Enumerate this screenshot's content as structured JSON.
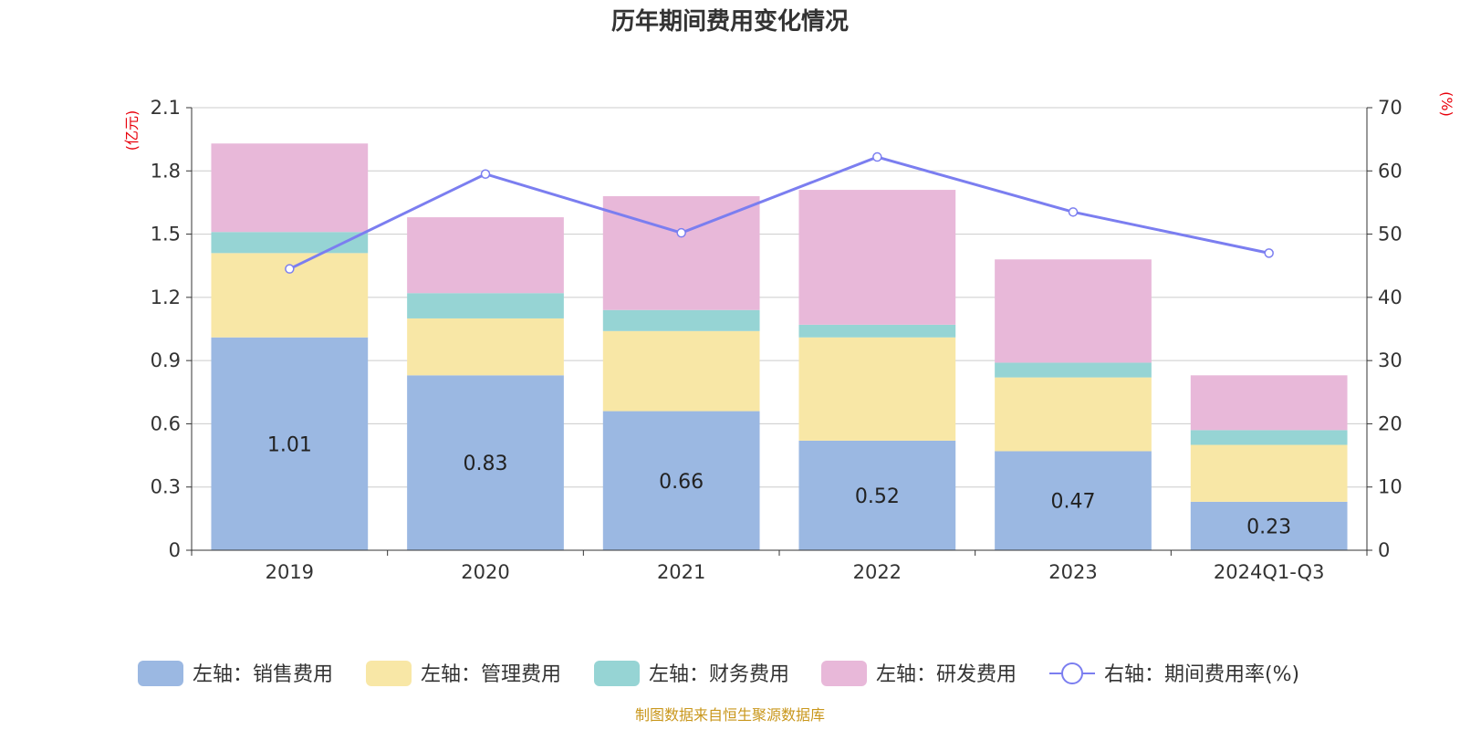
{
  "chart_data": {
    "type": "bar",
    "title": "历年期间费用变化情况",
    "categories": [
      "2019",
      "2020",
      "2021",
      "2022",
      "2023",
      "2024Q1-Q3"
    ],
    "left_axis": {
      "unit": "(亿元)",
      "ylim": [
        0,
        2.1
      ],
      "ticks": [
        "0",
        "0.3",
        "0.6",
        "0.9",
        "1.2",
        "1.5",
        "1.8",
        "2.1"
      ]
    },
    "right_axis": {
      "unit": "(%)",
      "ylim": [
        0,
        70
      ],
      "ticks": [
        "0",
        "10",
        "20",
        "30",
        "40",
        "50",
        "60",
        "70"
      ]
    },
    "series": [
      {
        "name": "左轴：销售费用",
        "type": "bar",
        "axis": "left",
        "color": "#9bb8e2",
        "values": [
          1.01,
          0.83,
          0.66,
          0.52,
          0.47,
          0.23
        ],
        "labels": [
          "1.01",
          "0.83",
          "0.66",
          "0.52",
          "0.47",
          "0.23"
        ]
      },
      {
        "name": "左轴：管理费用",
        "type": "bar",
        "axis": "left",
        "color": "#f8e7a6",
        "values": [
          0.4,
          0.27,
          0.38,
          0.49,
          0.35,
          0.27
        ]
      },
      {
        "name": "左轴：财务费用",
        "type": "bar",
        "axis": "left",
        "color": "#96d4d4",
        "values": [
          0.1,
          0.12,
          0.1,
          0.06,
          0.07,
          0.07
        ]
      },
      {
        "name": "左轴：研发费用",
        "type": "bar",
        "axis": "left",
        "color": "#e8b8d9",
        "values": [
          0.42,
          0.36,
          0.54,
          0.64,
          0.49,
          0.26
        ]
      },
      {
        "name": "右轴：期间费用率(%)",
        "type": "line",
        "axis": "right",
        "color": "#7b7ef0",
        "values": [
          44.5,
          59.5,
          50.2,
          62.2,
          53.5,
          47.0
        ]
      }
    ],
    "stacked": true,
    "grid": true,
    "legend_position": "bottom"
  },
  "source_note": "制图数据来自恒生聚源数据库"
}
